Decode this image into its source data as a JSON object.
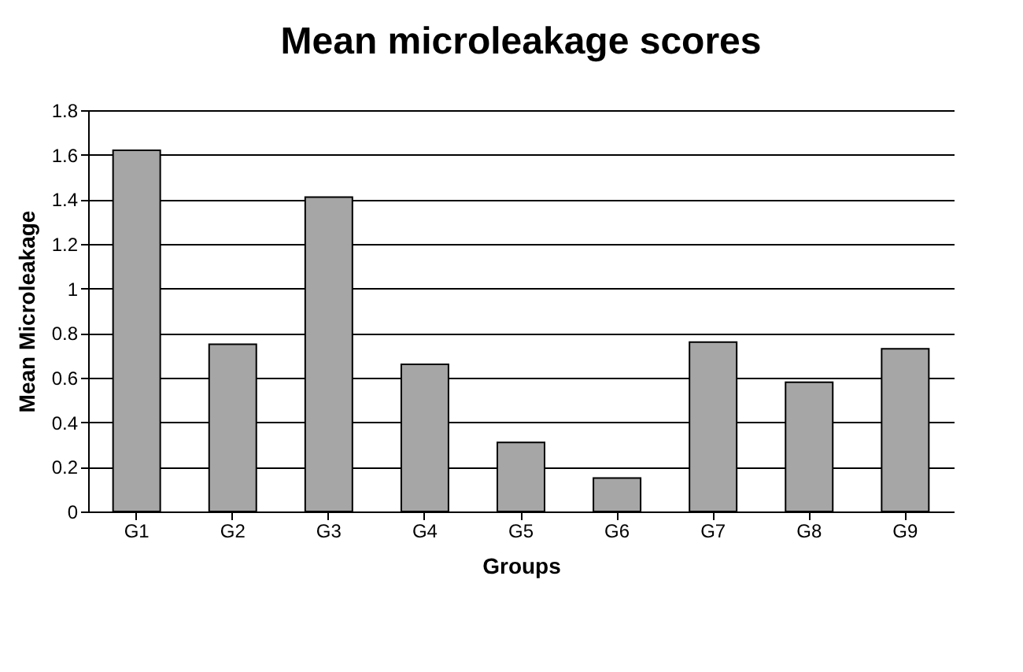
{
  "chart_data": {
    "type": "bar",
    "title": "Mean microleakage scores",
    "xlabel": "Groups",
    "ylabel": "Mean Microleakage",
    "categories": [
      "G1",
      "G2",
      "G3",
      "G4",
      "G5",
      "G6",
      "G7",
      "G8",
      "G9"
    ],
    "values": [
      1.62,
      0.75,
      1.41,
      0.66,
      0.31,
      0.15,
      0.76,
      0.58,
      0.73
    ],
    "color": "#a6a6a6",
    "ylim": [
      0,
      1.8
    ],
    "yticks": [
      0,
      0.2,
      0.4,
      0.6,
      0.8,
      1,
      1.2,
      1.4,
      1.6,
      1.8
    ],
    "grid": "y"
  }
}
